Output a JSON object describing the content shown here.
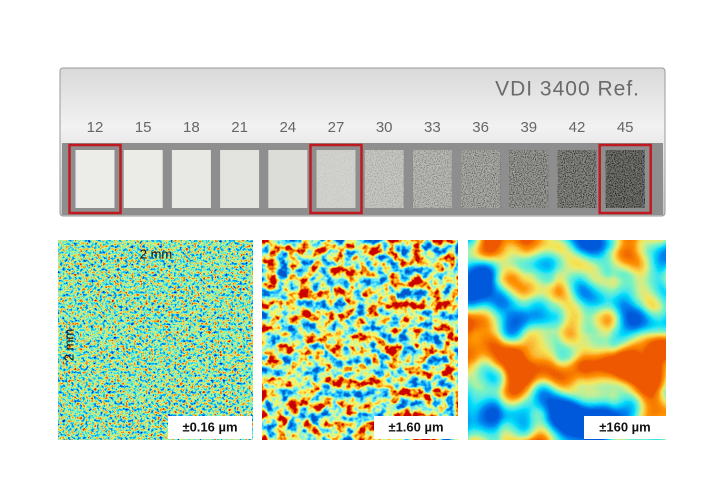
{
  "plate": {
    "title": "VDI 3400 Ref.",
    "grades": [
      "12",
      "15",
      "18",
      "21",
      "24",
      "27",
      "30",
      "33",
      "36",
      "39",
      "42",
      "45"
    ]
  },
  "panels": [
    {
      "scale_x": "2 mm",
      "scale_y": "2 mm",
      "range_label": "±0.16 µm"
    },
    {
      "range_label": "±1.60 µm"
    },
    {
      "range_label": "±160 µm"
    }
  ]
}
